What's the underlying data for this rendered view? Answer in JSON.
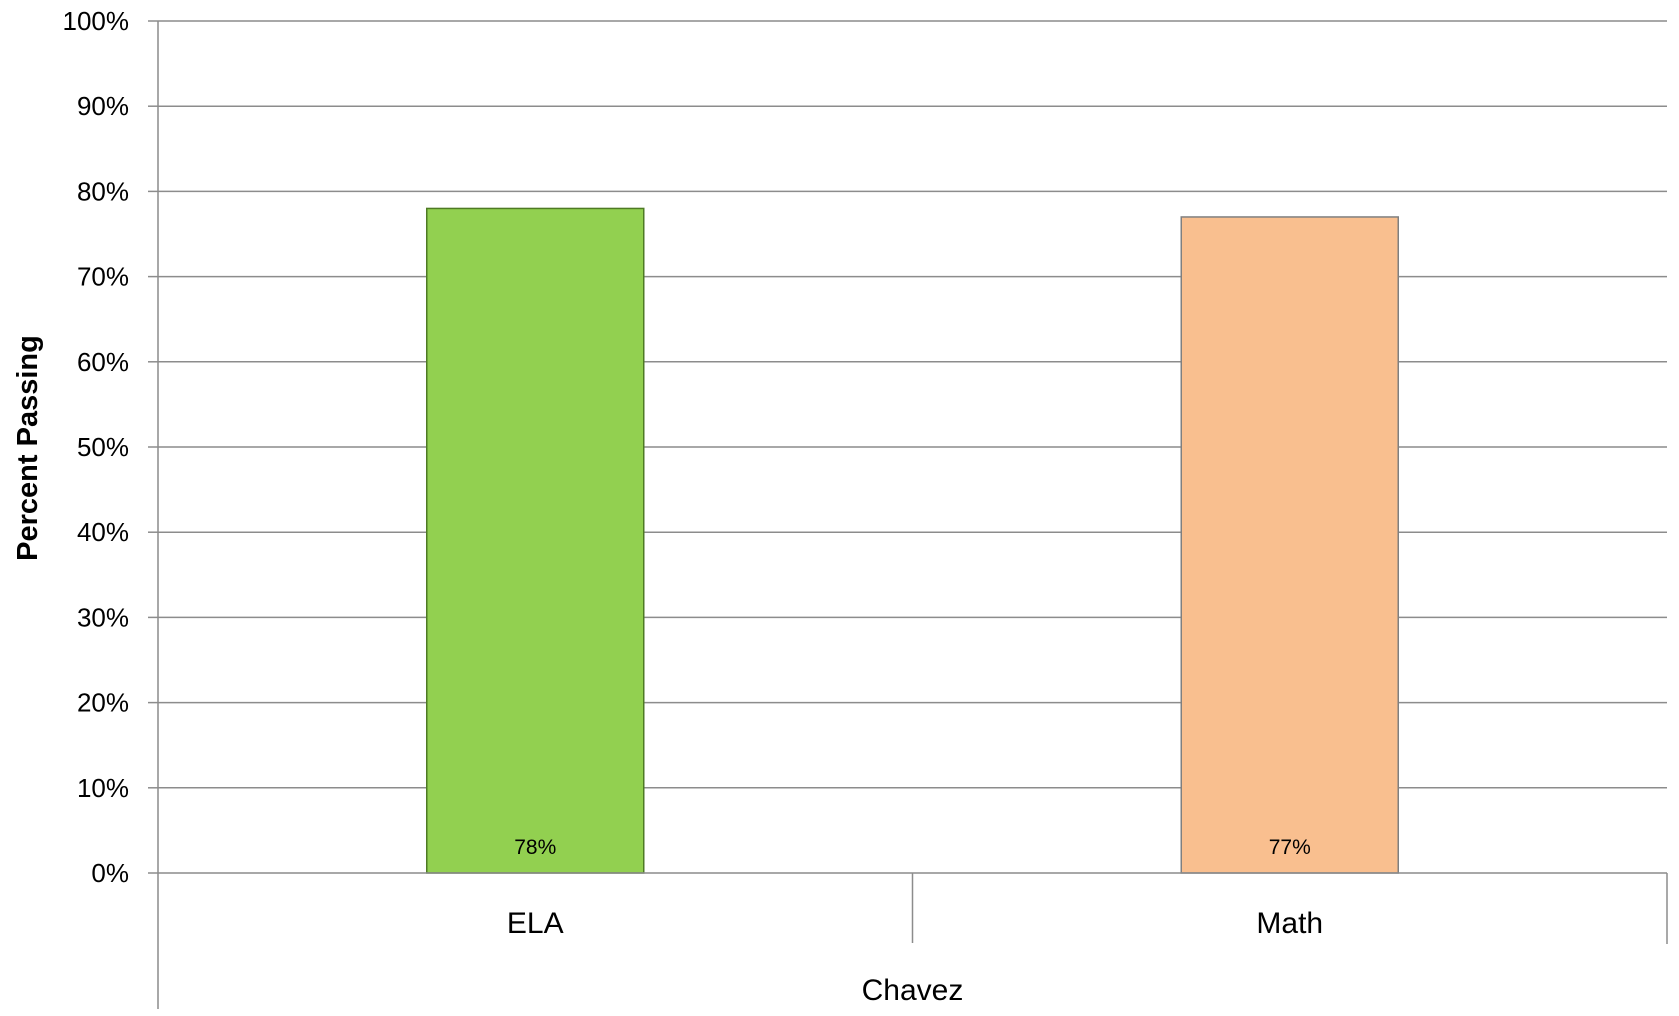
{
  "chart_data": {
    "type": "bar",
    "group_label": "Chavez",
    "categories": [
      "ELA",
      "Math"
    ],
    "values": [
      78,
      77
    ],
    "data_labels": [
      "78%",
      "77%"
    ],
    "bar_colors": [
      "#92d050",
      "#f9bf8f"
    ],
    "bar_outline_colors": [
      "#4e7a24",
      "#7f7f7f"
    ],
    "title": "",
    "xlabel": "",
    "ylabel": "Percent Passing",
    "ylim": [
      0,
      100
    ],
    "ytick_step": 10,
    "ytick_labels": [
      "0%",
      "10%",
      "20%",
      "30%",
      "40%",
      "50%",
      "60%",
      "70%",
      "80%",
      "90%",
      "100%"
    ],
    "grid": true,
    "legend": "none"
  }
}
